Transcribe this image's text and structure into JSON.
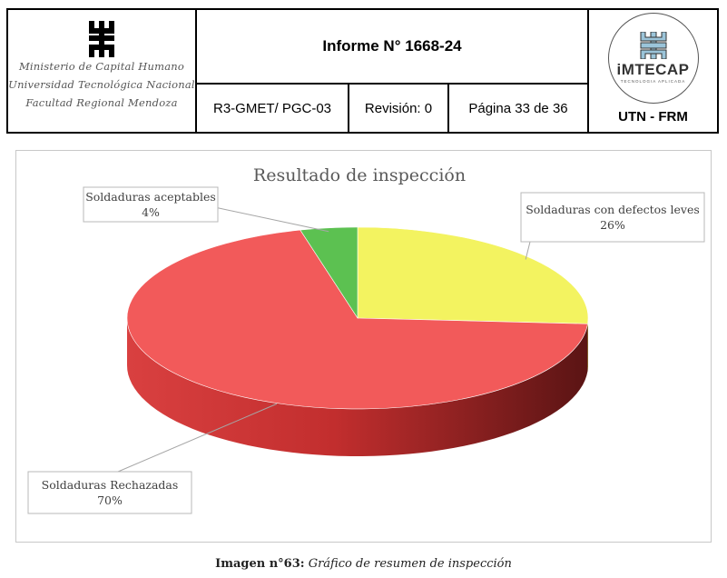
{
  "header": {
    "left_lines": [
      "Ministerio de Capital Humano",
      "Universidad Tecnológica Nacional",
      "Facultad Regional Mendoza"
    ],
    "title": "Informe N° 1668-24",
    "code": "R3-GMET/ PGC-03",
    "revision": "Revisión: 0",
    "page": "Página 33 de 36",
    "logo_name": "iMTECAP",
    "logo_sub": "TECNOLOGIA APLICADA",
    "right_label": "UTN - FRM",
    "colors": {
      "border": "#000000"
    }
  },
  "chart_data": {
    "type": "pie",
    "title": "Resultado de inspección",
    "slices": [
      {
        "label": "Soldaduras con defectos leves",
        "value": 26,
        "value_label": "26%",
        "color": "#f3f360"
      },
      {
        "label": "Soldaduras Rechazadas",
        "value": 70,
        "value_label": "70%",
        "color": "#f25a5a"
      },
      {
        "label": "Soldaduras aceptables",
        "value": 4,
        "value_label": "4%",
        "color": "#5cc151"
      }
    ],
    "style": "3d"
  },
  "caption": {
    "bold": "Imagen n°63:",
    "italic": "Gráfico de resumen de inspección"
  }
}
